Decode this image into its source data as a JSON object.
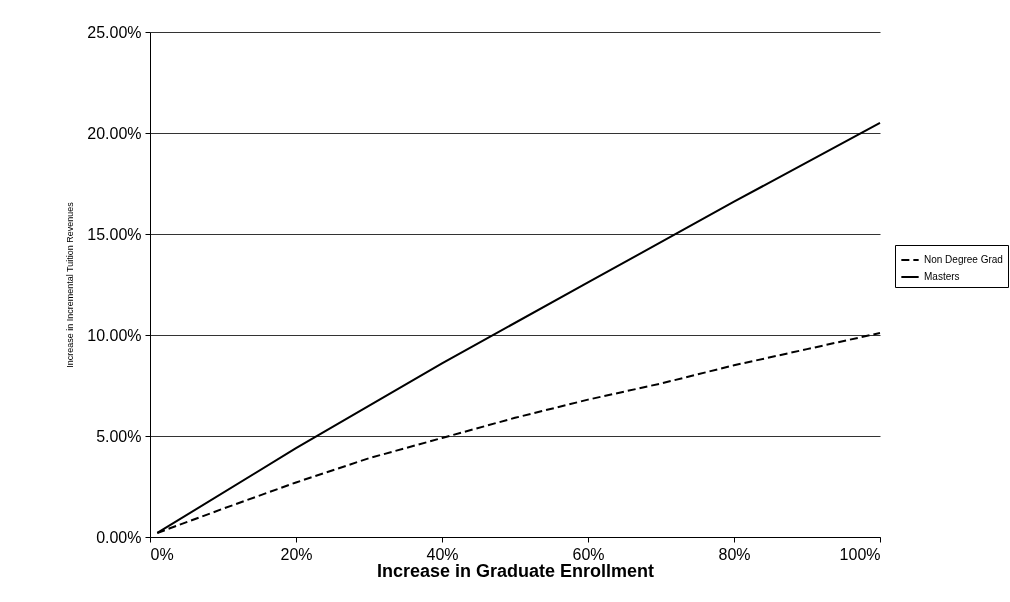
{
  "chart_data": {
    "type": "line",
    "xlabel": "Increase in Graduate Enrollment",
    "ylabel": "Increase in Incremental Tuition Revenues",
    "xlim": [
      0,
      100
    ],
    "xticks": [
      {
        "value": 0,
        "label": "0%"
      },
      {
        "value": 20,
        "label": "20%"
      },
      {
        "value": 40,
        "label": "40%"
      },
      {
        "value": 60,
        "label": "60%"
      },
      {
        "value": 80,
        "label": "80%"
      },
      {
        "value": 100,
        "label": "100%"
      }
    ],
    "ylim": [
      0,
      25
    ],
    "yticks": [
      {
        "value": 0,
        "label": "0.00%"
      },
      {
        "value": 5,
        "label": "5.00%"
      },
      {
        "value": 10,
        "label": "10.00%"
      },
      {
        "value": 15,
        "label": "15.00%"
      },
      {
        "value": 20,
        "label": "20.00%"
      },
      {
        "value": 25,
        "label": "25.00%"
      }
    ],
    "grid": "y",
    "legend": "right",
    "series": [
      {
        "name": "Non Degree Grad",
        "color": "#000000",
        "line_style": "dashed",
        "x": [
          1,
          10,
          20,
          30,
          40,
          50,
          60,
          70,
          80,
          90,
          100
        ],
        "values": [
          0.2,
          1.4,
          2.7,
          3.9,
          4.9,
          5.9,
          6.8,
          7.6,
          8.5,
          9.3,
          10.1
        ]
      },
      {
        "name": "Masters",
        "color": "#000000",
        "line_style": "solid",
        "x": [
          1,
          20,
          40,
          60,
          80,
          100
        ],
        "values": [
          0.2,
          4.4,
          8.6,
          12.6,
          16.6,
          20.5
        ]
      }
    ]
  }
}
